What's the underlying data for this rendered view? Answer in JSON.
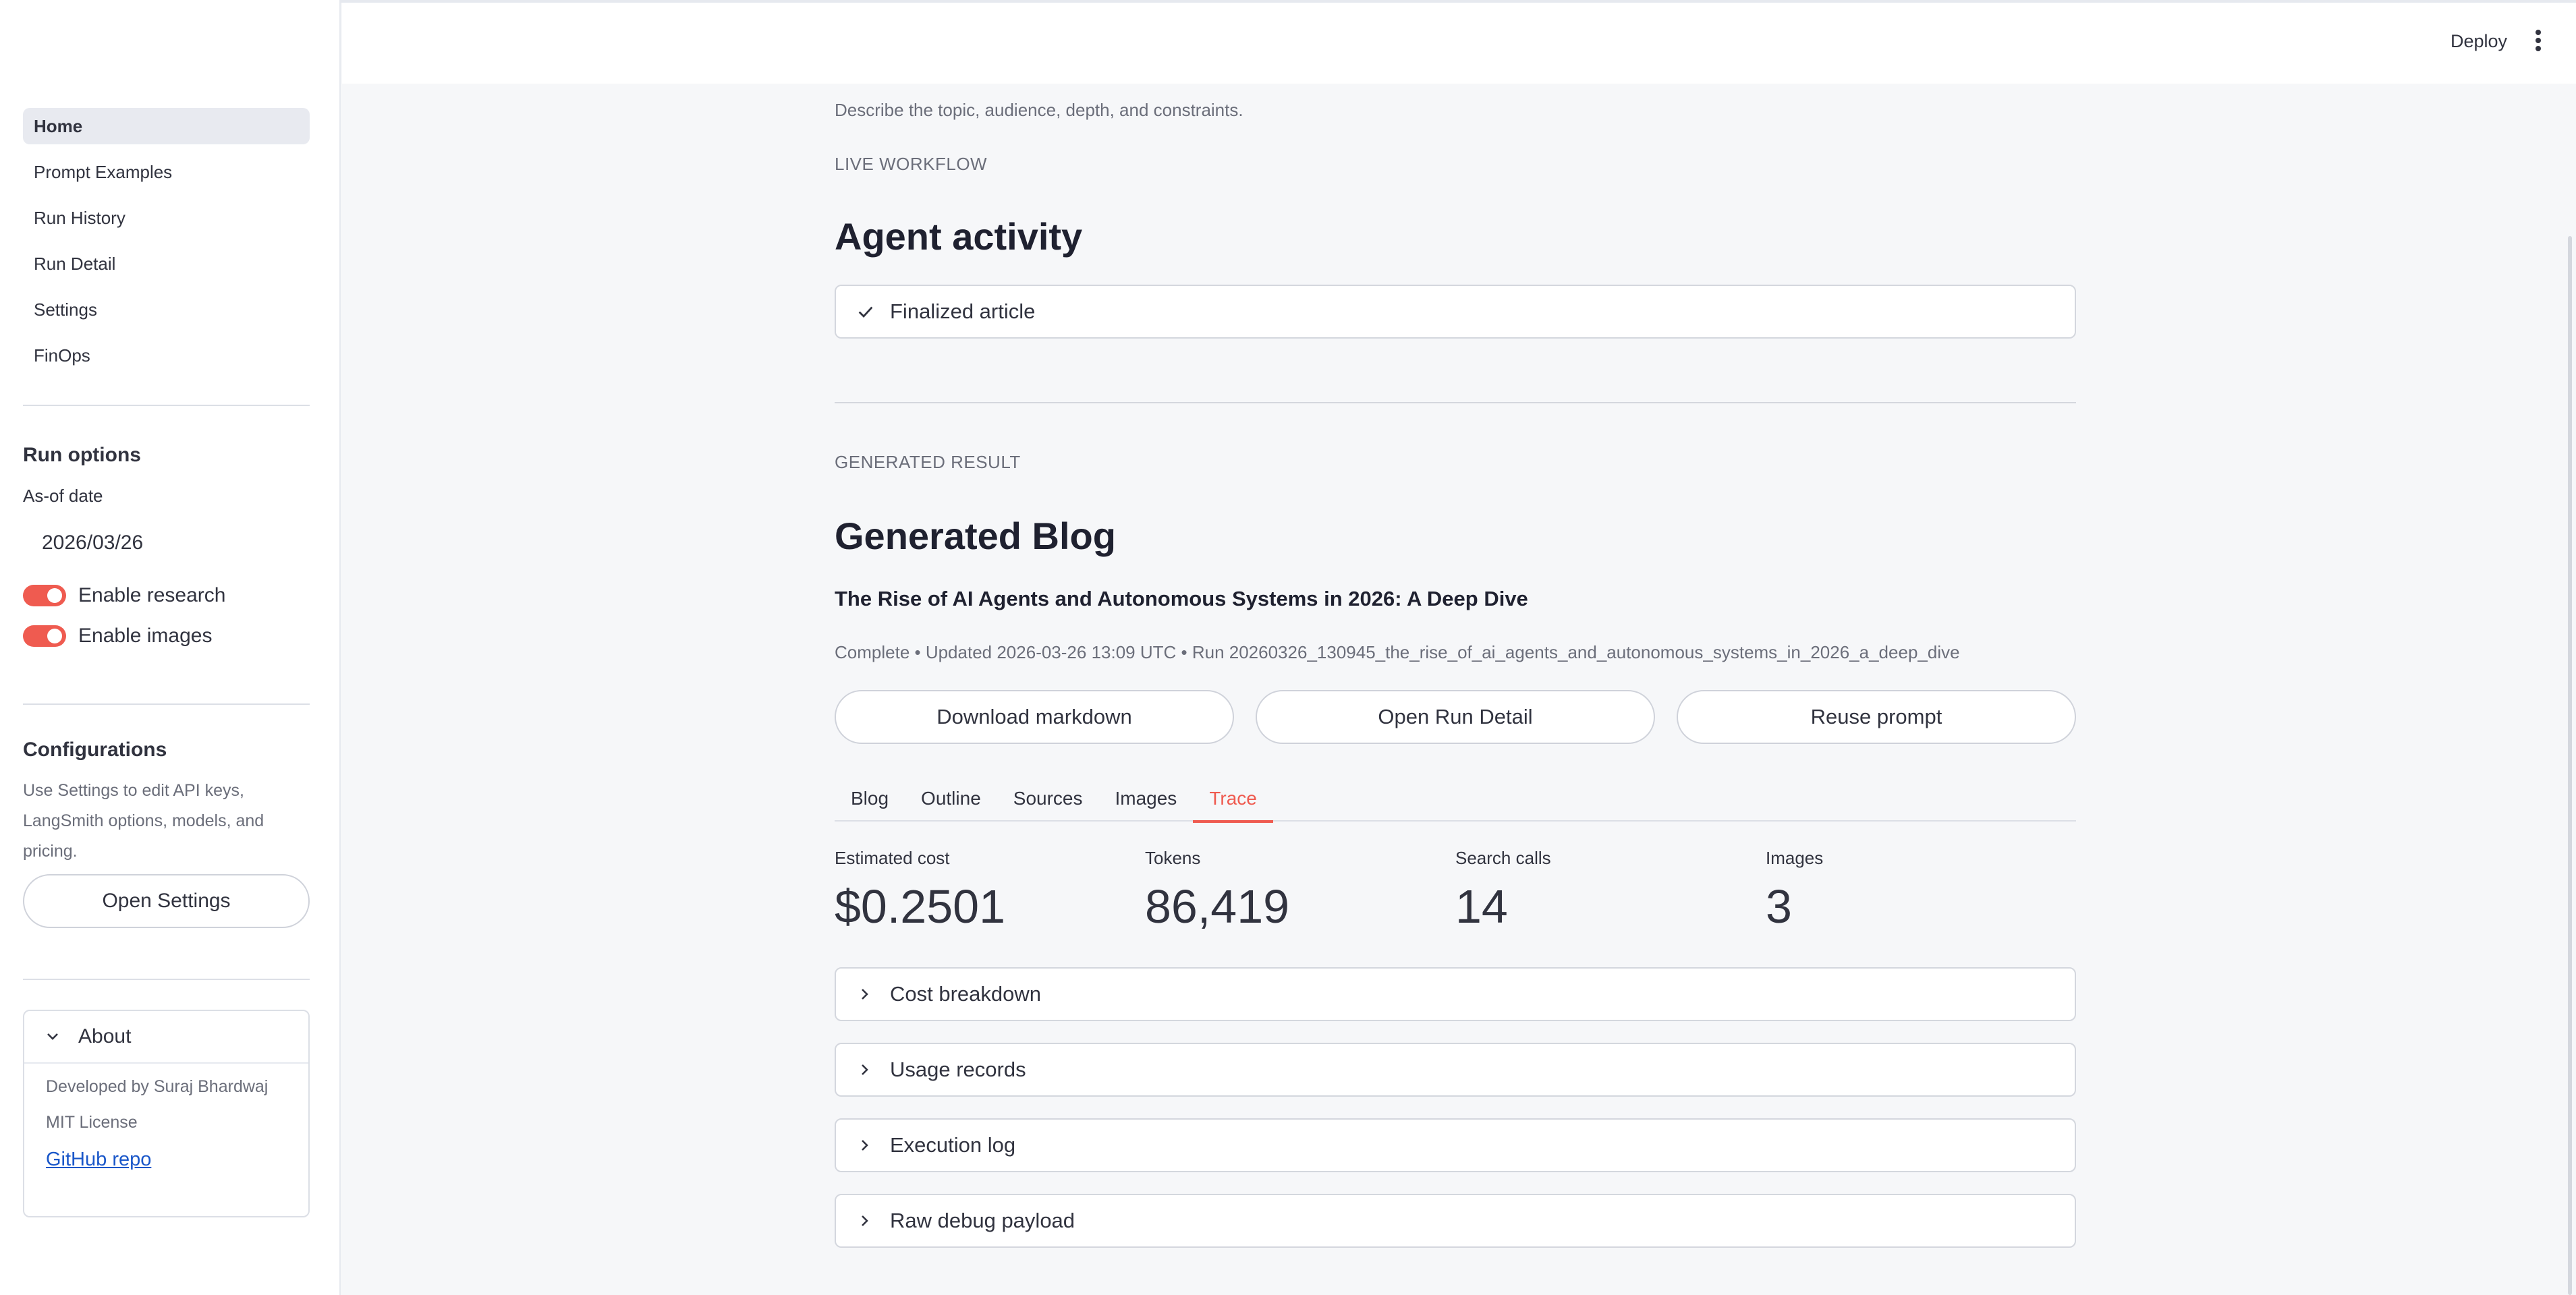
{
  "header": {
    "deploy_label": "Deploy"
  },
  "sidebar": {
    "nav": [
      {
        "label": "Home",
        "active": true
      },
      {
        "label": "Prompt Examples"
      },
      {
        "label": "Run History"
      },
      {
        "label": "Run Detail"
      },
      {
        "label": "Settings"
      },
      {
        "label": "FinOps"
      }
    ],
    "run_options": {
      "heading": "Run options",
      "date_label": "As-of date",
      "date_value": "2026/03/26",
      "enable_research": "Enable research",
      "enable_images": "Enable images"
    },
    "configurations": {
      "heading": "Configurations",
      "help": "Use Settings to edit API keys, LangSmith options, models, and pricing.",
      "button": "Open Settings"
    },
    "about": {
      "title": "About",
      "developer": "Developed by Suraj Bhardwaj",
      "license": "MIT License",
      "link": "GitHub repo"
    }
  },
  "main": {
    "intro": "Describe the topic, audience, depth, and constraints.",
    "live_workflow_label": "LIVE WORKFLOW",
    "agent_activity_title": "Agent activity",
    "status": "Finalized article",
    "generated_result_label": "GENERATED RESULT",
    "generated_blog_title": "Generated Blog",
    "article_title": "The Rise of AI Agents and Autonomous Systems in 2026: A Deep Dive",
    "meta": "Complete • Updated 2026-03-26 13:09 UTC • Run 20260326_130945_the_rise_of_ai_agents_and_autonomous_systems_in_2026_a_deep_dive",
    "buttons": {
      "download": "Download markdown",
      "open_run": "Open Run Detail",
      "reuse": "Reuse prompt"
    },
    "tabs": [
      "Blog",
      "Outline",
      "Sources",
      "Images",
      "Trace"
    ],
    "active_tab": "Trace",
    "metrics": [
      {
        "label": "Estimated cost",
        "value": "$0.2501"
      },
      {
        "label": "Tokens",
        "value": "86,419"
      },
      {
        "label": "Search calls",
        "value": "14"
      },
      {
        "label": "Images",
        "value": "3"
      }
    ],
    "expanders": [
      "Cost breakdown",
      "Usage records",
      "Execution log",
      "Raw debug payload"
    ]
  }
}
